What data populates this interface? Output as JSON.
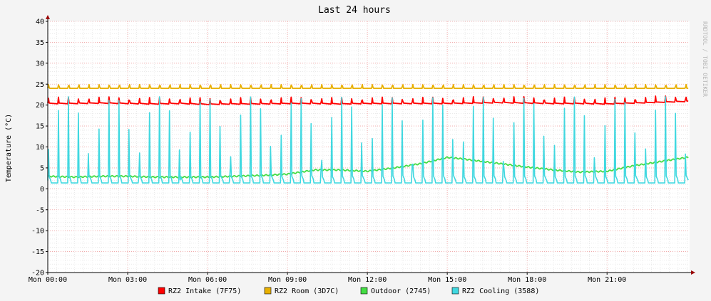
{
  "chart_data": {
    "type": "line",
    "title": "Last 24 hours",
    "ylabel": "Temperature (°C)",
    "xlabel": "",
    "watermark": "RRDTOOL / TOBI OETIKER",
    "ylim": [
      -20,
      40
    ],
    "yticks": [
      -20,
      -15,
      -10,
      -5,
      0,
      5,
      10,
      15,
      20,
      25,
      30,
      35,
      40
    ],
    "xlim_hours": [
      0,
      24.1
    ],
    "xticks": [
      {
        "hour": 0,
        "label": "Mon 00:00"
      },
      {
        "hour": 3,
        "label": "Mon 03:00"
      },
      {
        "hour": 6,
        "label": "Mon 06:00"
      },
      {
        "hour": 9,
        "label": "Mon 09:00"
      },
      {
        "hour": 12,
        "label": "Mon 12:00"
      },
      {
        "hour": 15,
        "label": "Mon 15:00"
      },
      {
        "hour": 18,
        "label": "Mon 18:00"
      },
      {
        "hour": 21,
        "label": "Mon 21:00"
      }
    ],
    "grid": true,
    "legend_position": "bottom",
    "series": [
      {
        "name": "RZ2 Intake (7F75)",
        "color": "#ff0000",
        "x": [
          0,
          1,
          2,
          3,
          4,
          5,
          6,
          7,
          8,
          9,
          10,
          11,
          12,
          13,
          14,
          15,
          16,
          17,
          18,
          19,
          20,
          21,
          22,
          23,
          24
        ],
        "y": [
          20.5,
          20.5,
          20.6,
          20.5,
          20.4,
          20.5,
          20.3,
          20.4,
          20.4,
          20.5,
          20.5,
          20.4,
          20.5,
          20.5,
          20.5,
          20.5,
          20.6,
          20.7,
          20.6,
          20.5,
          20.5,
          20.4,
          20.6,
          20.8,
          21
        ]
      },
      {
        "name": "RZ2 Room (3D7C)",
        "color": "#e8b000",
        "x": [
          0,
          1,
          2,
          3,
          4,
          5,
          6,
          7,
          8,
          9,
          10,
          11,
          12,
          13,
          14,
          15,
          16,
          17,
          18,
          19,
          20,
          21,
          22,
          23,
          24
        ],
        "y": [
          24,
          24,
          24,
          24,
          24,
          24,
          24,
          24,
          24,
          24,
          24,
          24,
          24,
          24,
          24,
          24,
          24,
          24,
          24,
          24,
          24,
          24,
          24,
          24,
          24
        ]
      },
      {
        "name": "Outdoor (2745)",
        "color": "#44dd44",
        "x": [
          0,
          1,
          2,
          3,
          4,
          5,
          6,
          7,
          8,
          9,
          10,
          11,
          12,
          13,
          14,
          15,
          15.5,
          16,
          17,
          18,
          19,
          20,
          21,
          22,
          23,
          24
        ],
        "y": [
          3,
          2.8,
          3,
          3,
          2.8,
          2.8,
          2.8,
          3,
          3.2,
          3.5,
          4.5,
          4.5,
          4.2,
          5,
          6,
          7.5,
          7.2,
          6.8,
          6,
          5.2,
          4.5,
          4,
          4.2,
          5.5,
          6.5,
          7.5
        ]
      },
      {
        "name": "RZ2 Cooling (3588)",
        "color": "#40d8e0",
        "x": [
          0,
          1,
          2,
          3,
          4,
          5,
          6,
          7,
          8,
          9,
          10,
          11,
          12,
          13,
          14,
          15,
          16,
          17,
          18,
          19,
          20,
          21,
          22,
          23,
          24
        ],
        "y": [
          2,
          2,
          2,
          2,
          2,
          2,
          2,
          2,
          2,
          2,
          2,
          2,
          2,
          2,
          2,
          2,
          2,
          2,
          2,
          2,
          2,
          2,
          2,
          2,
          2
        ]
      }
    ]
  }
}
